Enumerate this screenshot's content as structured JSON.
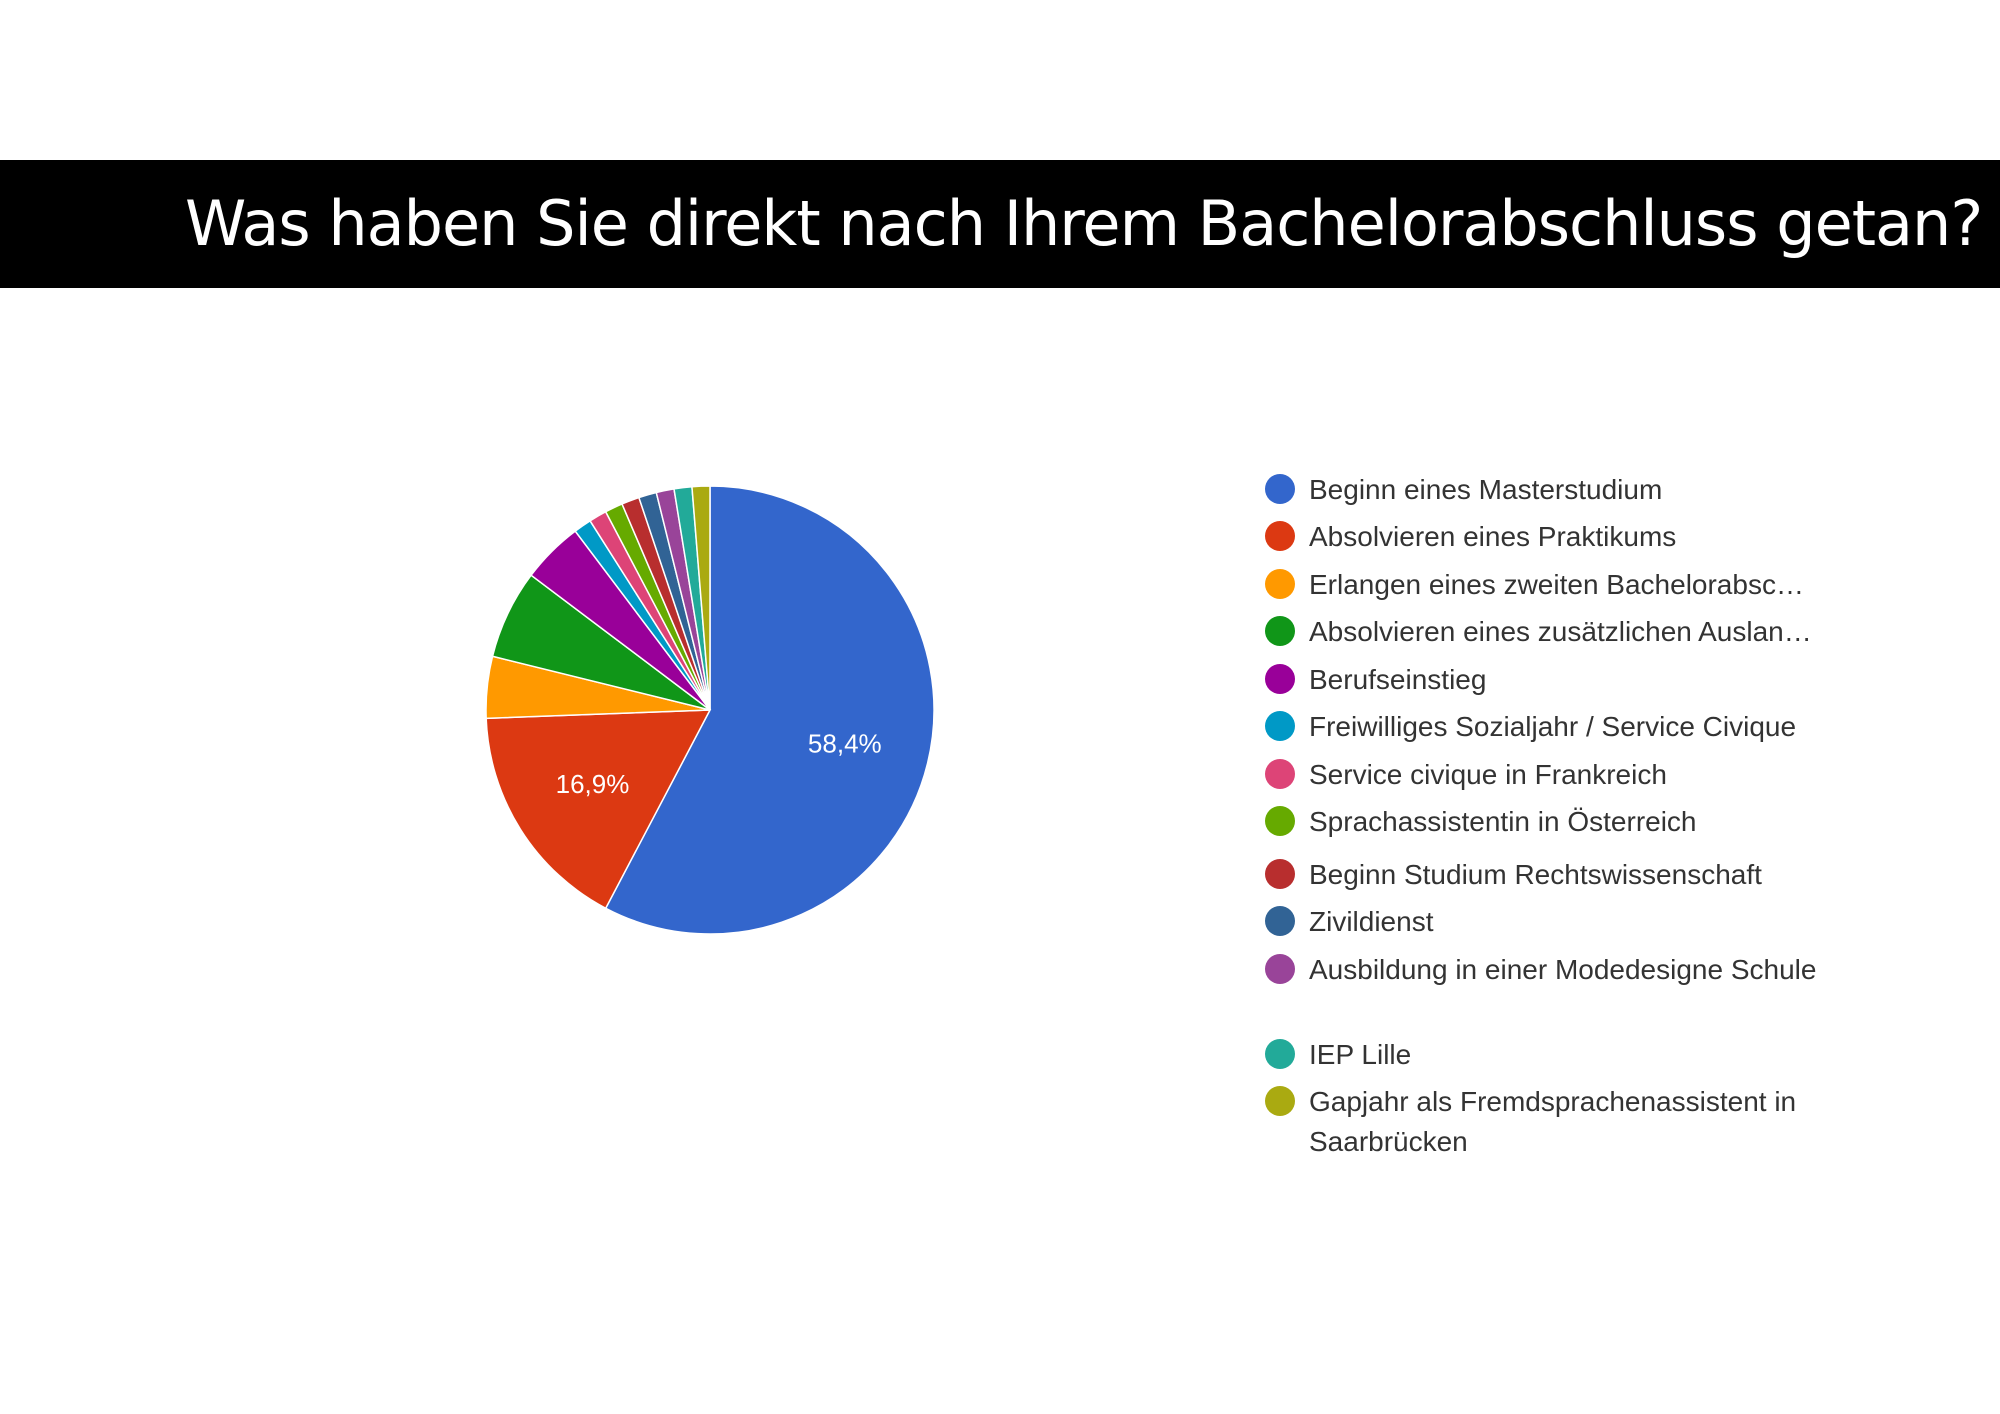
{
  "title": "Was haben Sie direkt nach Ihrem Bachelorabschluss getan?",
  "chart_data": {
    "type": "pie",
    "start_angle_deg": 90,
    "direction": "clockwise",
    "slices": [
      {
        "label": "Beginn eines Masterstudium",
        "value": 58.4,
        "display": "58,4%",
        "color": "#3366cc"
      },
      {
        "label": "Absolvieren eines Praktikums",
        "value": 16.9,
        "display": "16,9%",
        "color": "#dc3912"
      },
      {
        "label": "Erlangen eines zweiten Bachelorabsc…",
        "value": 4.5,
        "color": "#ff9900"
      },
      {
        "label": "Absolvieren eines zusätzlichen Auslan…",
        "value": 6.5,
        "color": "#109618"
      },
      {
        "label": "Berufseinstieg",
        "value": 4.5,
        "color": "#990099"
      },
      {
        "label": "Freiwilliges Sozialjahr / Service Civique",
        "value": 1.3,
        "color": "#0099c6"
      },
      {
        "label": "Service civique in Frankreich",
        "value": 1.3,
        "color": "#dd4477"
      },
      {
        "label": "Sprachassistentin in Österreich",
        "value": 1.3,
        "color": "#66aa00"
      },
      {
        "label": "Beginn Studium Rechtswissenschaft",
        "value": 1.3,
        "color": "#b82e2e"
      },
      {
        "label": "Zivildienst",
        "value": 1.3,
        "color": "#316395"
      },
      {
        "label": "Ausbildung in einer Modedesigne Schule",
        "value": 1.3,
        "color": "#994499"
      },
      {
        "label": "IEP Lille",
        "value": 1.3,
        "color": "#22aa99"
      },
      {
        "label": "Gapjahr als Fremdsprachenassistent in Saarbrücken",
        "value": 1.3,
        "color": "#aaaa11"
      }
    ],
    "legend_position": "right"
  }
}
